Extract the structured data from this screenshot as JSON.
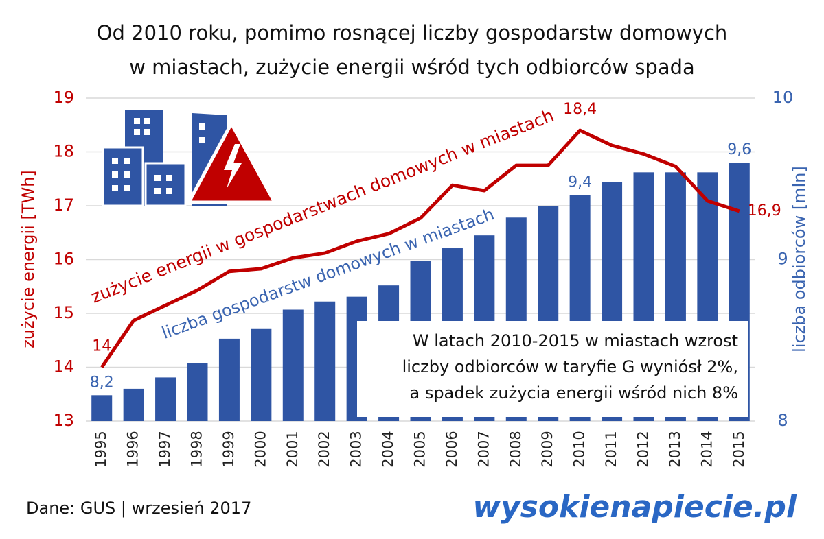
{
  "chart_data": {
    "type": "bar_line",
    "title": [
      "Od 2010 roku, pomimo rosnącej liczby gospodarstw domowych",
      "w miastach, zużycie energii wśród tych odbiorców spada"
    ],
    "categories": [
      "1995",
      "1996",
      "1997",
      "1998",
      "1999",
      "2000",
      "2001",
      "2002",
      "2003",
      "2004",
      "2005",
      "2006",
      "2007",
      "2008",
      "2009",
      "2010",
      "2011",
      "2012",
      "2013",
      "2014",
      "2015"
    ],
    "series": [
      {
        "name": "liczba gospodarstw domowych w miastach",
        "type": "bar",
        "axis": "y2",
        "color": "#2f55a4",
        "values": [
          8.16,
          8.2,
          8.27,
          8.36,
          8.51,
          8.57,
          8.69,
          8.74,
          8.77,
          8.84,
          8.99,
          9.07,
          9.15,
          9.26,
          9.33,
          9.4,
          9.48,
          9.54,
          9.54,
          9.54,
          9.6
        ],
        "value_labels": [
          "8,2",
          null,
          null,
          null,
          null,
          null,
          null,
          null,
          null,
          null,
          null,
          null,
          null,
          null,
          null,
          "9,4",
          null,
          null,
          null,
          null,
          "9,6"
        ]
      },
      {
        "name": "zużycie energii w gospodarstwach domowych w miastach",
        "type": "line",
        "axis": "y",
        "color": "#c00000",
        "values": [
          14.0,
          14.87,
          15.15,
          15.43,
          15.78,
          15.83,
          16.03,
          16.12,
          16.34,
          16.48,
          16.77,
          17.38,
          17.28,
          17.75,
          17.75,
          18.4,
          18.12,
          17.96,
          17.73,
          17.09,
          16.9
        ],
        "value_labels": [
          "14",
          null,
          null,
          null,
          null,
          null,
          null,
          null,
          null,
          null,
          null,
          null,
          null,
          null,
          null,
          "18,4",
          null,
          null,
          null,
          null,
          "16,9"
        ]
      }
    ],
    "ylabel": "zużycie energii  [TWh]",
    "y2label": "liczba odbiorców [mln]",
    "ylim": [
      13,
      19
    ],
    "yticks": [
      13,
      14,
      15,
      16,
      17,
      18,
      19
    ],
    "y2lim": [
      8,
      10
    ],
    "y2ticks": [
      8,
      9,
      10
    ],
    "grid": true,
    "note": [
      "W latach 2010-2015 w miastach wzrost",
      "liczby odbiorców w taryfie G wyniósł 2%,",
      "a spadek zużycia energii wśród nich 8%"
    ],
    "source": "Dane: GUS   |   wrzesień 2017",
    "logo": "wysokienapiecie.pl"
  }
}
